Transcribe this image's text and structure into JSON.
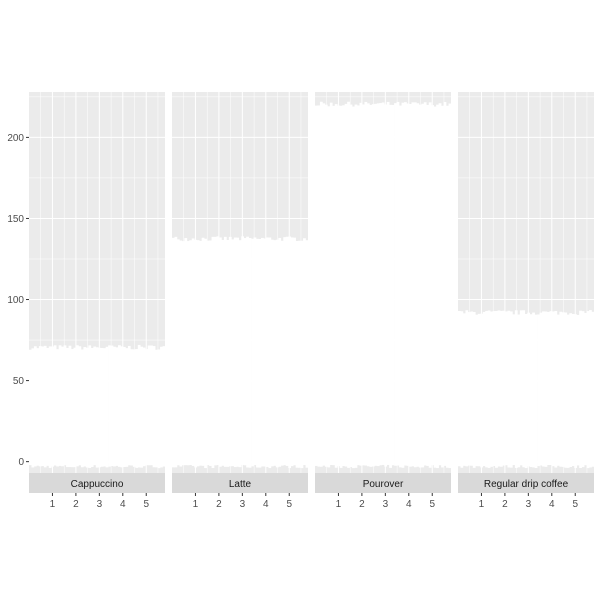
{
  "chart_data": {
    "type": "bar",
    "facets": [
      "Cappuccino",
      "Latte",
      "Pourover",
      "Regular drip coffee"
    ],
    "x_ticks": [
      1,
      2,
      3,
      4,
      5
    ],
    "y_ticks": [
      0,
      50,
      100,
      150,
      200
    ],
    "ylim": [
      -7,
      228
    ],
    "xlim": [
      0.0,
      5.8
    ],
    "bars_per_facet": 55,
    "series": [
      {
        "facet": "Cappuccino",
        "level": 70.5,
        "base": -4
      },
      {
        "facet": "Latte",
        "level": 137.5,
        "base": -4
      },
      {
        "facet": "Pourover",
        "level": 220.5,
        "base": -4
      },
      {
        "facet": "Regular drip coffee",
        "level": 92.0,
        "base": -4
      }
    ],
    "xlabel": "",
    "ylabel": "",
    "title": "",
    "panel_background": "#ebebeb",
    "strip_background": "#d9d9d9",
    "grid_color": "#ffffff",
    "bar_color": "#ffffff",
    "grid": true
  }
}
